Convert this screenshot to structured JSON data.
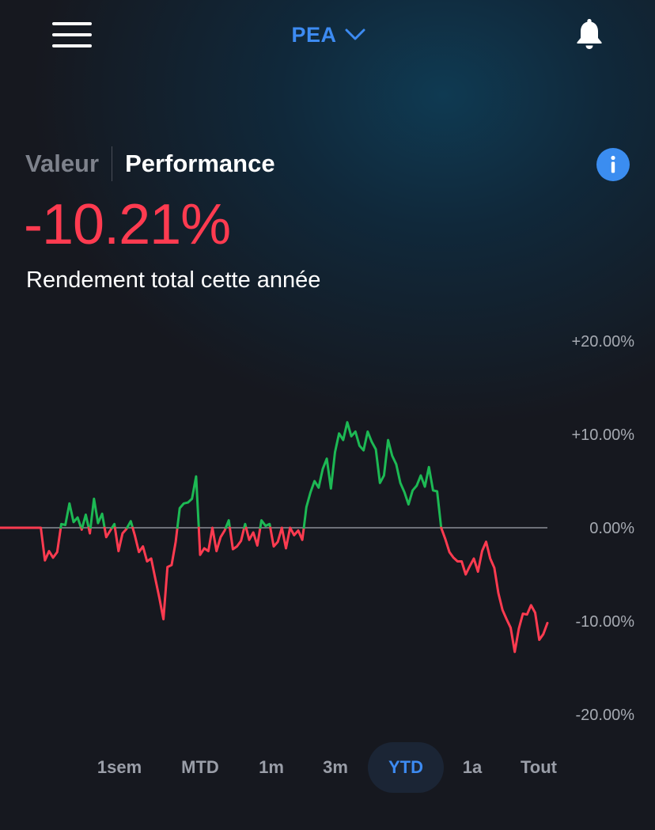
{
  "header": {
    "account": "PEA",
    "menu_icon": "hamburger-menu-icon",
    "dropdown_icon": "chevron-down-icon",
    "notifications_icon": "bell-icon"
  },
  "view_modes": {
    "items": [
      "Valeur",
      "Performance"
    ],
    "selected": "Performance"
  },
  "info_icon": "info-icon",
  "performance": {
    "value": "-10.21%",
    "caption": "Rendement total cette année"
  },
  "colors": {
    "accent": "#3d8bf2",
    "positive": "#1db954",
    "negative": "#ff3b50",
    "background": "#16181f"
  },
  "chart_data": {
    "type": "line",
    "y_tick_labels": [
      "+20.00%",
      "+10.00%",
      "0.00%",
      "-10.00%",
      "-20.00%"
    ],
    "y_ticks": [
      20,
      10,
      0,
      -10,
      -20
    ],
    "ylim": [
      -20,
      20
    ],
    "baseline": 0,
    "series": [
      {
        "values": [
          0,
          0,
          0,
          0,
          0,
          0,
          0,
          0,
          0,
          0,
          0,
          -3.5,
          -2.5,
          -3.2,
          -2.6,
          0.4,
          0.3,
          2.6,
          0.6,
          1.1,
          -0.2,
          1.4,
          -0.6,
          3.1,
          0.5,
          1.5,
          -1.0,
          -0.3,
          0.4,
          -2.5,
          -0.6,
          -0.1,
          0.7,
          -0.8,
          -2.6,
          -2.0,
          -3.6,
          -3.3,
          -5.4,
          -7.5,
          -9.8,
          -4.2,
          -4.0,
          -1.5,
          2.1,
          2.6,
          2.7,
          3.1,
          5.5,
          -2.9,
          -2.2,
          -2.5,
          0.0,
          -2.5,
          -1.0,
          -0.3,
          0.8,
          -2.3,
          -2.0,
          -1.4,
          0.4,
          -1.3,
          -0.5,
          -1.9,
          0.8,
          0.2,
          0.4,
          -2.0,
          -1.5,
          0.0,
          -2.2,
          0.0,
          -0.8,
          -0.3,
          -1.3,
          2.2,
          3.8,
          5.0,
          4.3,
          6.3,
          7.4,
          4.2,
          8.1,
          10.1,
          9.4,
          11.3,
          9.8,
          10.3,
          8.8,
          8.3,
          10.3,
          9.2,
          8.4,
          4.8,
          5.6,
          9.4,
          7.7,
          6.8,
          4.8,
          3.8,
          2.5,
          4.0,
          4.5,
          5.6,
          4.4,
          6.5,
          4.0,
          3.9,
          0.0,
          -1.2,
          -2.6,
          -3.2,
          -3.6,
          -3.6,
          -5.0,
          -4.1,
          -3.3,
          -4.7,
          -2.5,
          -1.5,
          -3.3,
          -4.3,
          -7.0,
          -8.8,
          -9.8,
          -10.7,
          -13.3,
          -10.8,
          -9.2,
          -9.3,
          -8.3,
          -9.1,
          -12.0,
          -11.4,
          -10.2
        ]
      }
    ]
  },
  "periods": {
    "items": [
      "1sem",
      "MTD",
      "1m",
      "3m",
      "YTD",
      "1a",
      "Tout"
    ],
    "selected": "YTD"
  }
}
